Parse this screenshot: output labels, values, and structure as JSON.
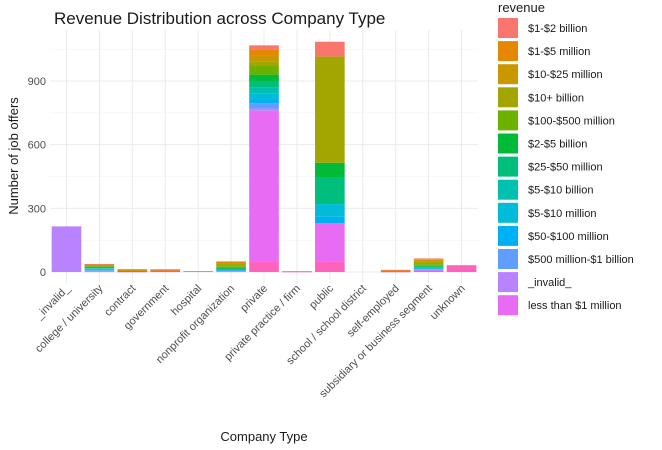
{
  "chart_data": {
    "type": "bar",
    "stacked": true,
    "title": "Revenue Distribution across Company Type",
    "xlabel": "Company Type",
    "ylabel": "Number of job offers",
    "ylim": [
      0,
      1080
    ],
    "yticks": [
      0,
      300,
      600,
      900
    ],
    "grid": true,
    "legend_title": "revenue",
    "legend_position": "right",
    "categories": [
      "_invalid_",
      "college / university",
      "contract",
      "government",
      "hospital",
      "nonprofit organization",
      "private",
      "private practice / firm",
      "public",
      "school / school district",
      "self-employed",
      "subsidiary or business segment",
      "unknown"
    ],
    "series": [
      {
        "name": "$1-$2 billion",
        "color": "#F8766D",
        "values": [
          0,
          3,
          4,
          6,
          0,
          3,
          18,
          0,
          70,
          0,
          3,
          4,
          0
        ]
      },
      {
        "name": "$1-$5 million",
        "color": "#E58700",
        "values": [
          0,
          2,
          3,
          2,
          0,
          2,
          30,
          0,
          0,
          0,
          2,
          2,
          0
        ]
      },
      {
        "name": "$10-$25 million",
        "color": "#C99800",
        "values": [
          0,
          2,
          2,
          0,
          0,
          3,
          30,
          1,
          0,
          0,
          1,
          8,
          0
        ]
      },
      {
        "name": "$10+ billion",
        "color": "#A3A500",
        "values": [
          0,
          3,
          0,
          2,
          0,
          15,
          15,
          0,
          500,
          0,
          1,
          14,
          0
        ]
      },
      {
        "name": "$100-$500 million",
        "color": "#6BB100",
        "values": [
          0,
          3,
          1,
          0,
          0,
          8,
          45,
          0,
          0,
          0,
          1,
          7,
          0
        ]
      },
      {
        "name": "$2-$5 billion",
        "color": "#00BA38",
        "values": [
          0,
          4,
          0,
          1,
          0,
          3,
          30,
          0,
          70,
          0,
          1,
          4,
          0
        ]
      },
      {
        "name": "$25-$50 million",
        "color": "#00BF7D",
        "values": [
          0,
          3,
          1,
          0,
          0,
          2,
          30,
          0,
          125,
          0,
          0,
          3,
          0
        ]
      },
      {
        "name": "$5-$10 billion",
        "color": "#00C0AF",
        "values": [
          0,
          3,
          1,
          0,
          0,
          2,
          30,
          0,
          0,
          0,
          0,
          3,
          0
        ]
      },
      {
        "name": "$5-$10 million",
        "color": "#00BCD8",
        "values": [
          0,
          4,
          0,
          0,
          0,
          3,
          25,
          0,
          60,
          0,
          0,
          3,
          0
        ]
      },
      {
        "name": "$50-$100 million",
        "color": "#00B0F6",
        "values": [
          0,
          3,
          1,
          0,
          0,
          2,
          20,
          0,
          30,
          0,
          0,
          3,
          0
        ]
      },
      {
        "name": "$500 million-$1 billion",
        "color": "#619CFF",
        "values": [
          0,
          2,
          0,
          0,
          4,
          3,
          25,
          0,
          0,
          0,
          0,
          3,
          0
        ]
      },
      {
        "name": "_invalid_",
        "color": "#B983FF",
        "values": [
          215,
          2,
          0,
          0,
          0,
          2,
          10,
          0,
          0,
          0,
          0,
          3,
          0
        ]
      },
      {
        "name": "less than $1 million",
        "color": "#E76BF3",
        "values": [
          0,
          2,
          0,
          0,
          0,
          0,
          710,
          2,
          180,
          0,
          0,
          2,
          0
        ]
      },
      {
        "name": "",
        "color": "#FF62BC",
        "values": [
          0,
          2,
          1,
          2,
          0,
          2,
          50,
          1,
          50,
          0,
          1,
          5,
          32
        ]
      }
    ]
  }
}
